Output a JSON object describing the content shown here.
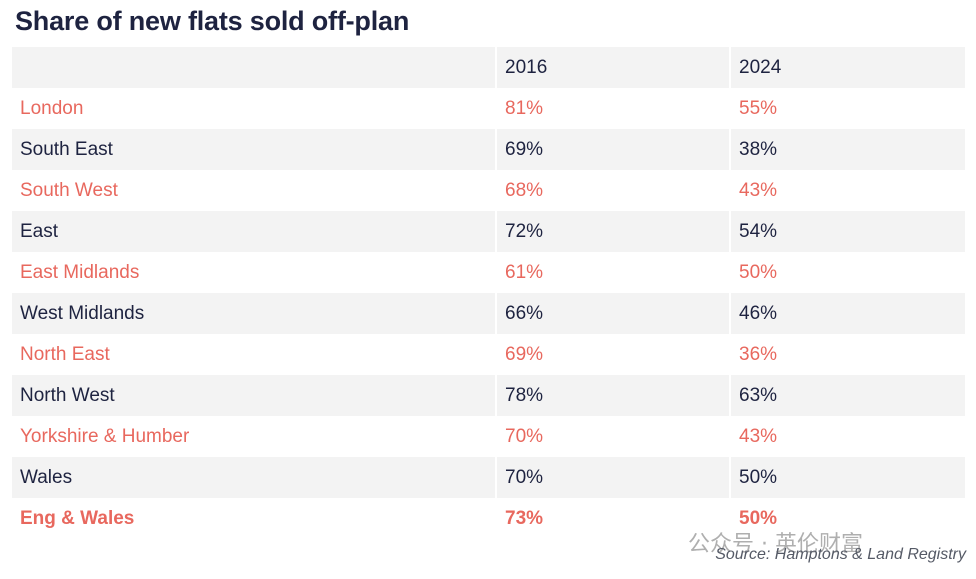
{
  "chart_data": {
    "type": "table",
    "title": "Share of new flats sold off-plan",
    "columns": [
      "",
      "2016",
      "2024"
    ],
    "rows": [
      {
        "region": "London",
        "y2016": "81%",
        "y2024": "55%"
      },
      {
        "region": "South East",
        "y2016": "69%",
        "y2024": "38%"
      },
      {
        "region": "South West",
        "y2016": "68%",
        "y2024": "43%"
      },
      {
        "region": "East",
        "y2016": "72%",
        "y2024": "54%"
      },
      {
        "region": "East Midlands",
        "y2016": "61%",
        "y2024": "50%"
      },
      {
        "region": "West Midlands",
        "y2016": "66%",
        "y2024": "46%"
      },
      {
        "region": "North East",
        "y2016": "69%",
        "y2024": "36%"
      },
      {
        "region": "North West",
        "y2016": "78%",
        "y2024": "63%"
      },
      {
        "region": "Yorkshire & Humber",
        "y2016": "70%",
        "y2024": "43%"
      },
      {
        "region": "Wales",
        "y2016": "70%",
        "y2024": "50%"
      }
    ],
    "total": {
      "region": "Eng & Wales",
      "y2016": "73%",
      "y2024": "50%"
    },
    "source": "Source: Hamptons & Land Registry"
  },
  "watermark": "公众号 · 英伦财富",
  "colors": {
    "accent": "#e8685e",
    "text": "#1e2340",
    "row_shade": "#f3f3f3"
  }
}
